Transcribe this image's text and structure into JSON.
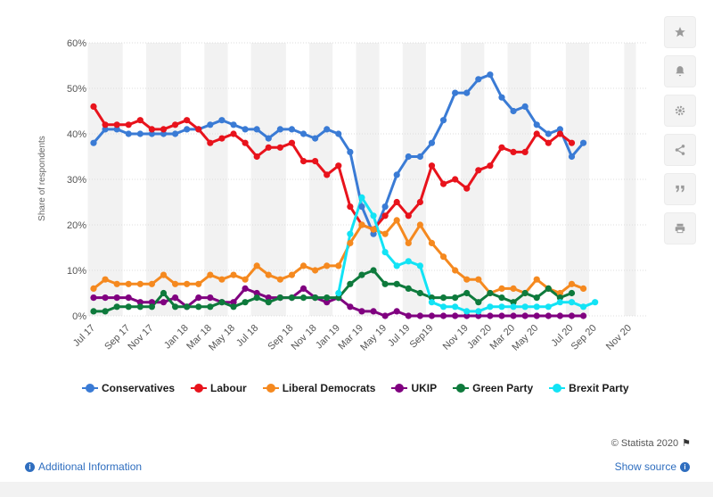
{
  "chart_data": {
    "type": "line",
    "title": "",
    "ylabel": "Share of respondents",
    "xlabel": "",
    "ylim": [
      0,
      60
    ],
    "yticks": [
      0,
      10,
      20,
      30,
      40,
      50,
      60
    ],
    "ytick_labels": [
      "0%",
      "10%",
      "20%",
      "30%",
      "40%",
      "50%",
      "60%"
    ],
    "num_points": 48,
    "xtick_labels": [
      {
        "index": 0,
        "label": "Jul 17"
      },
      {
        "index": 3,
        "label": "Sep 17"
      },
      {
        "index": 5,
        "label": "Nov 17"
      },
      {
        "index": 8,
        "label": "Jan 18"
      },
      {
        "index": 10,
        "label": "Mar 18"
      },
      {
        "index": 12,
        "label": "May 18"
      },
      {
        "index": 14,
        "label": "Jul 18"
      },
      {
        "index": 17,
        "label": "Sep 18"
      },
      {
        "index": 19,
        "label": "Nov 18"
      },
      {
        "index": 21,
        "label": "Jan 19"
      },
      {
        "index": 23,
        "label": "Mar 19"
      },
      {
        "index": 25,
        "label": "May 19"
      },
      {
        "index": 27,
        "label": "Jul 19"
      },
      {
        "index": 29,
        "label": "Sep19"
      },
      {
        "index": 32,
        "label": "Nov 19"
      },
      {
        "index": 34,
        "label": "Jan 20"
      },
      {
        "index": 36,
        "label": "Mar 20"
      },
      {
        "index": 38,
        "label": "May 20"
      },
      {
        "index": 41,
        "label": "Jul 20"
      },
      {
        "index": 43,
        "label": "Sep 20"
      },
      {
        "index": 46,
        "label": "Nov 20"
      }
    ],
    "series": [
      {
        "name": "Conservatives",
        "color": "#3a7bd5",
        "values": [
          38,
          41,
          41,
          40,
          40,
          40,
          40,
          40,
          41,
          41,
          42,
          43,
          42,
          41,
          41,
          39,
          41,
          41,
          40,
          39,
          41,
          40,
          36,
          24,
          18,
          24,
          31,
          35,
          35,
          38,
          43,
          49,
          49,
          52,
          53,
          48,
          45,
          46,
          42,
          40,
          41,
          35,
          38,
          null,
          null,
          null,
          null,
          null
        ]
      },
      {
        "name": "Labour",
        "color": "#e8131c",
        "values": [
          46,
          42,
          42,
          42,
          43,
          41,
          41,
          42,
          43,
          41,
          38,
          39,
          40,
          38,
          35,
          37,
          37,
          38,
          34,
          34,
          31,
          33,
          24,
          20,
          19,
          22,
          25,
          22,
          25,
          33,
          29,
          30,
          28,
          32,
          33,
          37,
          36,
          36,
          40,
          38,
          40,
          38,
          null,
          null,
          null,
          null,
          null,
          null
        ]
      },
      {
        "name": "Liberal Democrats",
        "color": "#f5891f",
        "values": [
          6,
          8,
          7,
          7,
          7,
          7,
          9,
          7,
          7,
          7,
          9,
          8,
          9,
          8,
          11,
          9,
          8,
          9,
          11,
          10,
          11,
          11,
          16,
          20,
          19,
          18,
          21,
          16,
          20,
          16,
          13,
          10,
          8,
          8,
          5,
          6,
          6,
          5,
          8,
          6,
          5,
          7,
          6,
          null,
          null,
          null,
          null,
          null
        ]
      },
      {
        "name": "UKIP",
        "color": "#800080",
        "values": [
          4,
          4,
          4,
          4,
          3,
          3,
          3,
          4,
          2,
          4,
          4,
          3,
          3,
          6,
          5,
          4,
          4,
          4,
          6,
          4,
          3,
          4,
          2,
          1,
          1,
          0,
          1,
          0,
          0,
          0,
          0,
          0,
          0,
          0,
          0,
          0,
          0,
          0,
          0,
          0,
          0,
          0,
          0,
          null,
          null,
          null,
          null,
          null
        ]
      },
      {
        "name": "Green Party",
        "color": "#0e7a3c",
        "values": [
          1,
          1,
          2,
          2,
          2,
          2,
          5,
          2,
          2,
          2,
          2,
          3,
          2,
          3,
          4,
          3,
          4,
          4,
          4,
          4,
          4,
          4,
          7,
          9,
          10,
          7,
          7,
          6,
          5,
          4,
          4,
          4,
          5,
          3,
          5,
          4,
          3,
          5,
          4,
          6,
          4,
          5,
          null,
          null,
          null,
          null,
          null,
          null
        ]
      },
      {
        "name": "Brexit Party",
        "color": "#12e3f5",
        "values": [
          null,
          null,
          null,
          null,
          null,
          null,
          null,
          null,
          null,
          null,
          null,
          null,
          null,
          null,
          null,
          null,
          null,
          null,
          null,
          null,
          null,
          5,
          18,
          26,
          22,
          14,
          11,
          12,
          11,
          3,
          2,
          2,
          1,
          1,
          2,
          2,
          2,
          2,
          2,
          2,
          3,
          3,
          2,
          3,
          null,
          null,
          null,
          null
        ]
      }
    ]
  },
  "legend": [
    "Conservatives",
    "Labour",
    "Liberal Democrats",
    "UKIP",
    "Green Party",
    "Brexit Party"
  ],
  "footer": {
    "credit": "© Statista 2020",
    "additional_info": "Additional Information",
    "show_source": "Show source"
  },
  "sidebar": [
    "star-icon",
    "bell-icon",
    "gear-icon",
    "share-icon",
    "quote-icon",
    "print-icon"
  ]
}
